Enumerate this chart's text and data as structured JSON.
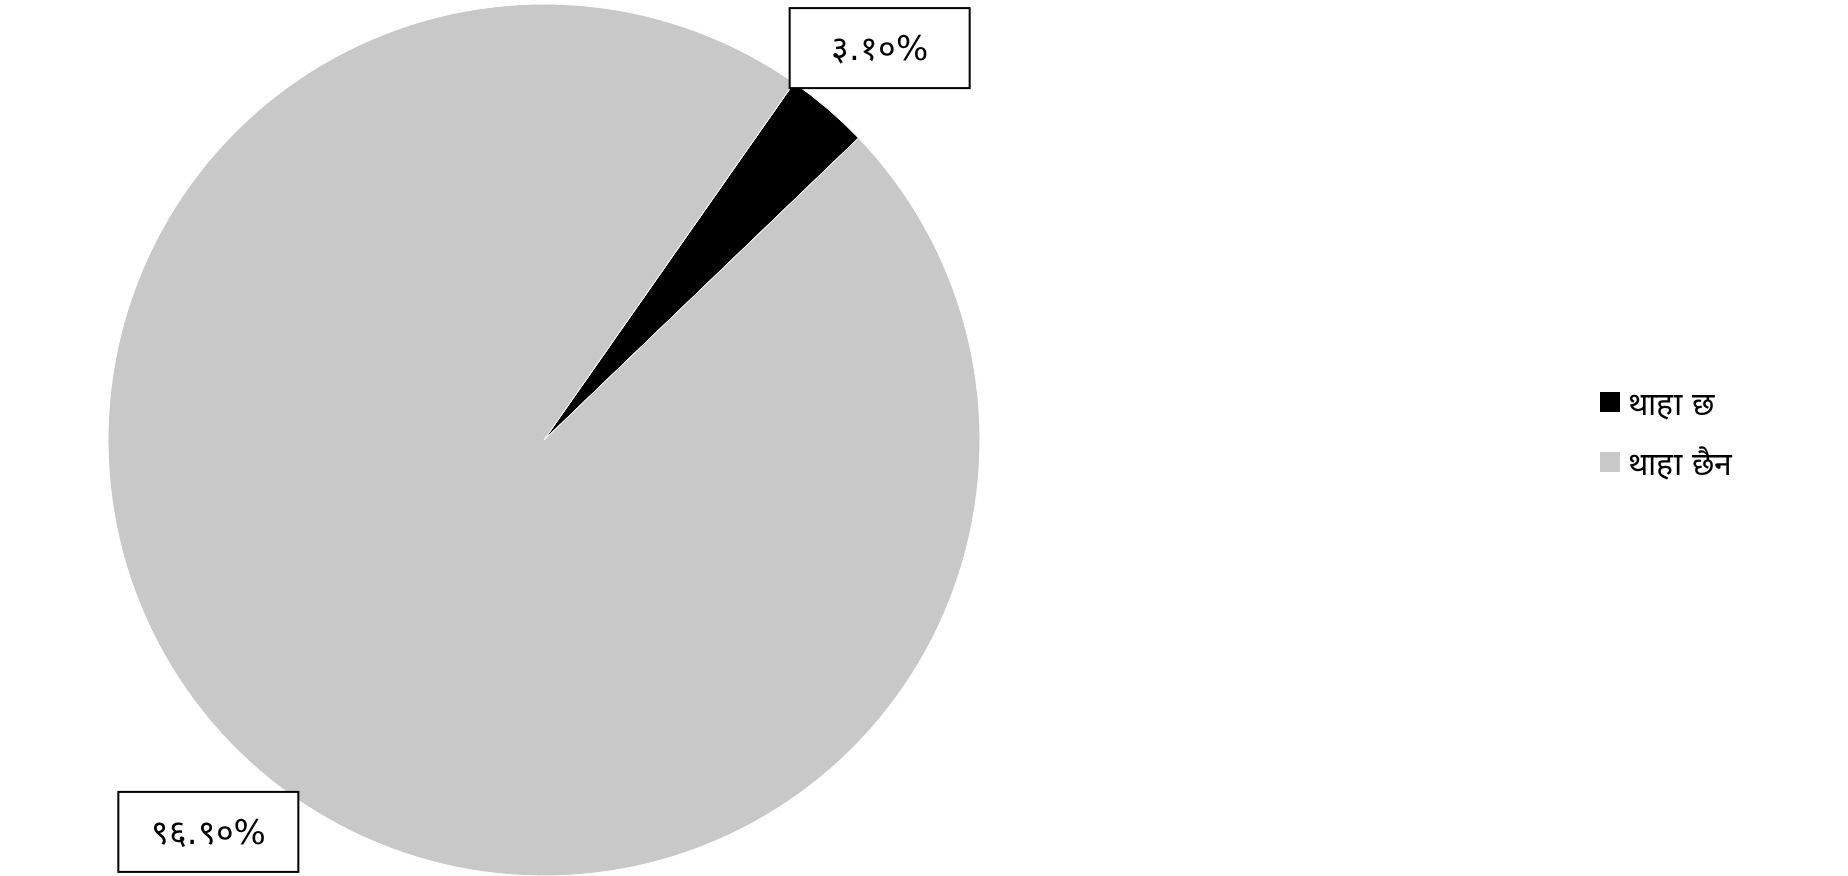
{
  "chart_data": {
    "type": "pie",
    "categories": [
      "थाहा छ",
      "थाहा छैन"
    ],
    "values": [
      3.1,
      96.9
    ],
    "colors": [
      "#000000",
      "#c8c8c8"
    ],
    "value_labels": [
      "३.१०%",
      "९६.९०%"
    ],
    "legend": "right"
  }
}
